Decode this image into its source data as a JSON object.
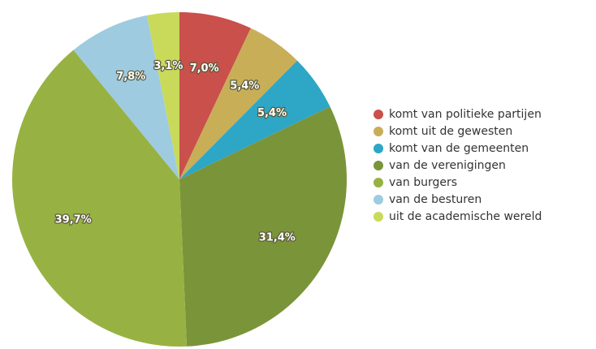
{
  "chart_data": {
    "type": "pie",
    "categories": [
      "komt van politieke partijen",
      "komt uit de gewesten",
      "komt van de gemeenten",
      "van de verenigingen",
      "van burgers",
      "van de besturen",
      "uit de academische wereld"
    ],
    "values": [
      7.0,
      5.4,
      5.4,
      31.4,
      39.7,
      7.8,
      3.1
    ],
    "value_labels": [
      "7,0%",
      "5,4%",
      "5,4%",
      "31,4%",
      "39,7%",
      "7,8%",
      "3,1%"
    ],
    "colors": [
      "#c9504b",
      "#c8ae57",
      "#2ea6c6",
      "#7a9439",
      "#97b242",
      "#9ecbe0",
      "#c9da5a"
    ],
    "legend": "right"
  }
}
